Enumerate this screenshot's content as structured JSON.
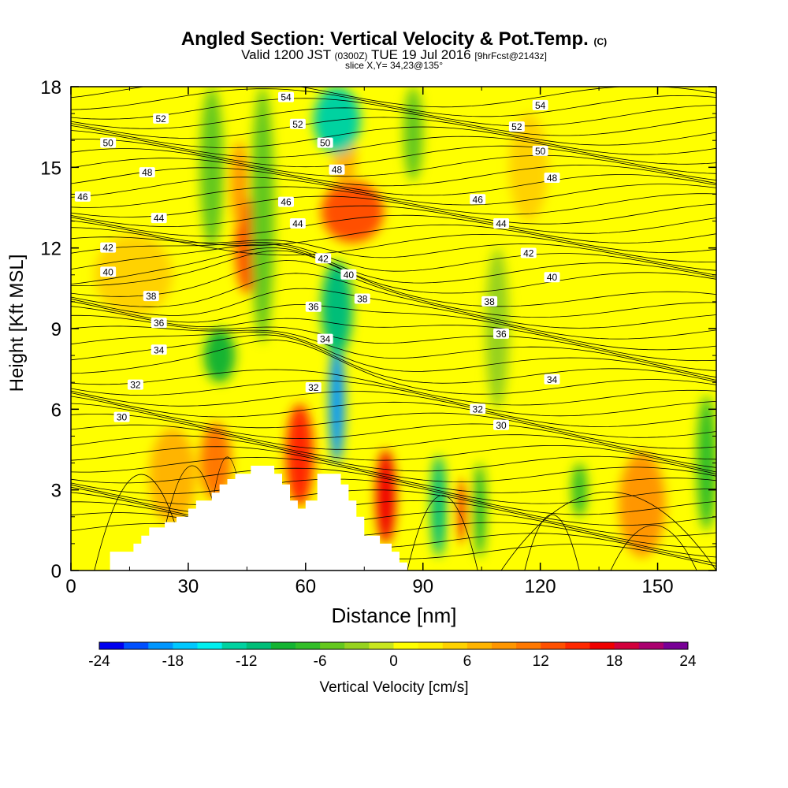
{
  "header": {
    "title_main": "Angled Section: Vertical Velocity & Pot.Temp.",
    "title_mark": "(C)",
    "valid_prefix": "Valid 1200 JST",
    "valid_utc": "(0300Z)",
    "valid_date": "TUE 19 Jul 2016",
    "forecast": "[9hrFcst@2143z]",
    "slice": "slice X,Y= 34,23@135°"
  },
  "chart_data": {
    "type": "heatmap",
    "title": "Angled Section: Vertical Velocity & Pot.Temp.",
    "xlabel": "Distance [nm]",
    "ylabel": "Height [Kft MSL]",
    "xlim": [
      0,
      165
    ],
    "ylim": [
      0,
      18
    ],
    "x_ticks": [
      "0",
      "30",
      "60",
      "90",
      "120",
      "150"
    ],
    "y_ticks": [
      "0",
      "3",
      "6",
      "9",
      "12",
      "15",
      "18"
    ],
    "grid": false,
    "colorbar": {
      "label": "Vertical Velocity [cm/s]",
      "min": -24,
      "max": 24,
      "step": 2,
      "tick_labels": [
        "-24",
        "-18",
        "-12",
        "-6",
        "0",
        "6",
        "12",
        "18",
        "24"
      ],
      "colors": [
        "#0000f0",
        "#0050ff",
        "#0096ff",
        "#00c8ff",
        "#00f0f0",
        "#00d2a0",
        "#00be78",
        "#14b432",
        "#32be28",
        "#64c81e",
        "#96d21e",
        "#c8e61e",
        "#ffff00",
        "#fff000",
        "#ffd200",
        "#ffb400",
        "#ff9600",
        "#ff7800",
        "#ff5000",
        "#ff2800",
        "#f00000",
        "#d2003c",
        "#aa006e",
        "#780096"
      ]
    },
    "terrain_kft": [
      [
        0,
        0
      ],
      [
        10,
        0
      ],
      [
        10,
        0.7
      ],
      [
        16,
        0.7
      ],
      [
        16,
        1.0
      ],
      [
        18,
        1.0
      ],
      [
        18,
        1.3
      ],
      [
        20,
        1.3
      ],
      [
        20,
        1.6
      ],
      [
        24,
        1.6
      ],
      [
        24,
        1.8
      ],
      [
        27,
        1.8
      ],
      [
        27,
        2.0
      ],
      [
        30,
        2.0
      ],
      [
        30,
        2.3
      ],
      [
        32,
        2.3
      ],
      [
        32,
        2.6
      ],
      [
        36,
        2.6
      ],
      [
        36,
        2.9
      ],
      [
        38,
        2.9
      ],
      [
        38,
        3.2
      ],
      [
        40,
        3.2
      ],
      [
        40,
        3.4
      ],
      [
        42,
        3.4
      ],
      [
        42,
        3.6
      ],
      [
        46,
        3.6
      ],
      [
        46,
        3.9
      ],
      [
        52,
        3.9
      ],
      [
        52,
        3.6
      ],
      [
        54,
        3.6
      ],
      [
        54,
        3.2
      ],
      [
        56,
        3.2
      ],
      [
        56,
        2.6
      ],
      [
        58,
        2.6
      ],
      [
        58,
        2.3
      ],
      [
        60,
        2.3
      ],
      [
        60,
        2.6
      ],
      [
        63,
        2.6
      ],
      [
        63,
        3.6
      ],
      [
        69,
        3.6
      ],
      [
        69,
        3.2
      ],
      [
        71,
        3.2
      ],
      [
        71,
        2.6
      ],
      [
        73,
        2.6
      ],
      [
        73,
        2.0
      ],
      [
        75,
        2.0
      ],
      [
        75,
        1.3
      ],
      [
        79,
        1.3
      ],
      [
        79,
        1.0
      ],
      [
        82,
        1.0
      ],
      [
        82,
        0.7
      ],
      [
        84,
        0.7
      ],
      [
        84,
        0.3
      ],
      [
        86,
        0.3
      ],
      [
        86,
        0
      ],
      [
        0,
        0
      ]
    ],
    "vertical_velocity_cells": [
      {
        "x": [
          0,
          165
        ],
        "y": [
          0,
          18
        ],
        "w": 1
      },
      {
        "x": [
          6,
          26
        ],
        "y": [
          9.5,
          12.5
        ],
        "w": 4
      },
      {
        "x": [
          42,
          48
        ],
        "y": [
          10.3,
          13.8
        ],
        "w": 12
      },
      {
        "x": [
          41,
          45
        ],
        "y": [
          12.8,
          16
        ],
        "w": 8
      },
      {
        "x": [
          64,
          80
        ],
        "y": [
          12.2,
          14.5
        ],
        "w": 12
      },
      {
        "x": [
          67,
          73
        ],
        "y": [
          14.3,
          16.5
        ],
        "w": 6
      },
      {
        "x": [
          55,
          62
        ],
        "y": [
          2.4,
          6.2
        ],
        "w": 15
      },
      {
        "x": [
          78,
          83
        ],
        "y": [
          1.0,
          4.5
        ],
        "w": 17
      },
      {
        "x": [
          99,
          101
        ],
        "y": [
          1.0,
          3.4
        ],
        "w": 17
      },
      {
        "x": [
          140,
          152
        ],
        "y": [
          0.5,
          4.4
        ],
        "w": 9
      },
      {
        "x": [
          33,
          41
        ],
        "y": [
          2.6,
          5.5
        ],
        "w": 10
      },
      {
        "x": [
          20,
          32
        ],
        "y": [
          1.7,
          5.3
        ],
        "w": 6
      },
      {
        "x": [
          112,
          122
        ],
        "y": [
          13,
          17
        ],
        "w": 5
      },
      {
        "x": [
          62,
          74
        ],
        "y": [
          15.5,
          18
        ],
        "w": -14
      },
      {
        "x": [
          66,
          70
        ],
        "y": [
          4.0,
          8.5
        ],
        "w": -20
      },
      {
        "x": [
          64,
          72
        ],
        "y": [
          8.0,
          11.5
        ],
        "w": -12
      },
      {
        "x": [
          34,
          42
        ],
        "y": [
          7.0,
          9.0
        ],
        "w": -9
      },
      {
        "x": [
          46,
          52
        ],
        "y": [
          8.5,
          18
        ],
        "w": -6
      },
      {
        "x": [
          33,
          39
        ],
        "y": [
          12,
          18
        ],
        "w": -6
      },
      {
        "x": [
          92,
          96
        ],
        "y": [
          0.5,
          4.3
        ],
        "w": -12
      },
      {
        "x": [
          103,
          106
        ],
        "y": [
          0.5,
          4.0
        ],
        "w": -9
      },
      {
        "x": [
          128,
          132
        ],
        "y": [
          2.0,
          4.0
        ],
        "w": -8
      },
      {
        "x": [
          160,
          165
        ],
        "y": [
          1.5,
          6.5
        ],
        "w": -7
      },
      {
        "x": [
          85,
          90
        ],
        "y": [
          14.5,
          18
        ],
        "w": -6
      },
      {
        "x": [
          106,
          112
        ],
        "y": [
          6,
          12
        ],
        "w": -4
      }
    ],
    "potential_temperature_labels": [
      {
        "text": "54",
        "x": 55,
        "y": 17.6
      },
      {
        "text": "54",
        "x": 120,
        "y": 17.3
      },
      {
        "text": "52",
        "x": 23,
        "y": 16.8
      },
      {
        "text": "52",
        "x": 58,
        "y": 16.6
      },
      {
        "text": "52",
        "x": 114,
        "y": 16.5
      },
      {
        "text": "50",
        "x": 9.5,
        "y": 15.9
      },
      {
        "text": "50",
        "x": 65,
        "y": 15.9
      },
      {
        "text": "50",
        "x": 120,
        "y": 15.6
      },
      {
        "text": "48",
        "x": 19.5,
        "y": 14.8
      },
      {
        "text": "48",
        "x": 68,
        "y": 14.9
      },
      {
        "text": "48",
        "x": 123,
        "y": 14.6
      },
      {
        "text": "46",
        "x": 3,
        "y": 13.9
      },
      {
        "text": "46",
        "x": 55,
        "y": 13.7
      },
      {
        "text": "46",
        "x": 104,
        "y": 13.8
      },
      {
        "text": "44",
        "x": 22.5,
        "y": 13.1
      },
      {
        "text": "44",
        "x": 58,
        "y": 12.9
      },
      {
        "text": "44",
        "x": 110,
        "y": 12.9
      },
      {
        "text": "42",
        "x": 9.5,
        "y": 12.0
      },
      {
        "text": "42",
        "x": 64.5,
        "y": 11.6
      },
      {
        "text": "42",
        "x": 117,
        "y": 11.8
      },
      {
        "text": "40",
        "x": 9.5,
        "y": 11.1
      },
      {
        "text": "40",
        "x": 71,
        "y": 11.0
      },
      {
        "text": "40",
        "x": 123,
        "y": 10.9
      },
      {
        "text": "38",
        "x": 20.5,
        "y": 10.2
      },
      {
        "text": "38",
        "x": 74.5,
        "y": 10.1
      },
      {
        "text": "38",
        "x": 107,
        "y": 10.0
      },
      {
        "text": "36",
        "x": 22.5,
        "y": 9.2
      },
      {
        "text": "36",
        "x": 62,
        "y": 9.8
      },
      {
        "text": "36",
        "x": 110,
        "y": 8.8
      },
      {
        "text": "34",
        "x": 22.5,
        "y": 8.2
      },
      {
        "text": "34",
        "x": 65,
        "y": 8.6
      },
      {
        "text": "34",
        "x": 123,
        "y": 7.1
      },
      {
        "text": "32",
        "x": 16.5,
        "y": 6.9
      },
      {
        "text": "32",
        "x": 62,
        "y": 6.8
      },
      {
        "text": "32",
        "x": 104,
        "y": 6.0
      },
      {
        "text": "30",
        "x": 13,
        "y": 5.7
      },
      {
        "text": "30",
        "x": 110,
        "y": 5.4
      }
    ]
  }
}
